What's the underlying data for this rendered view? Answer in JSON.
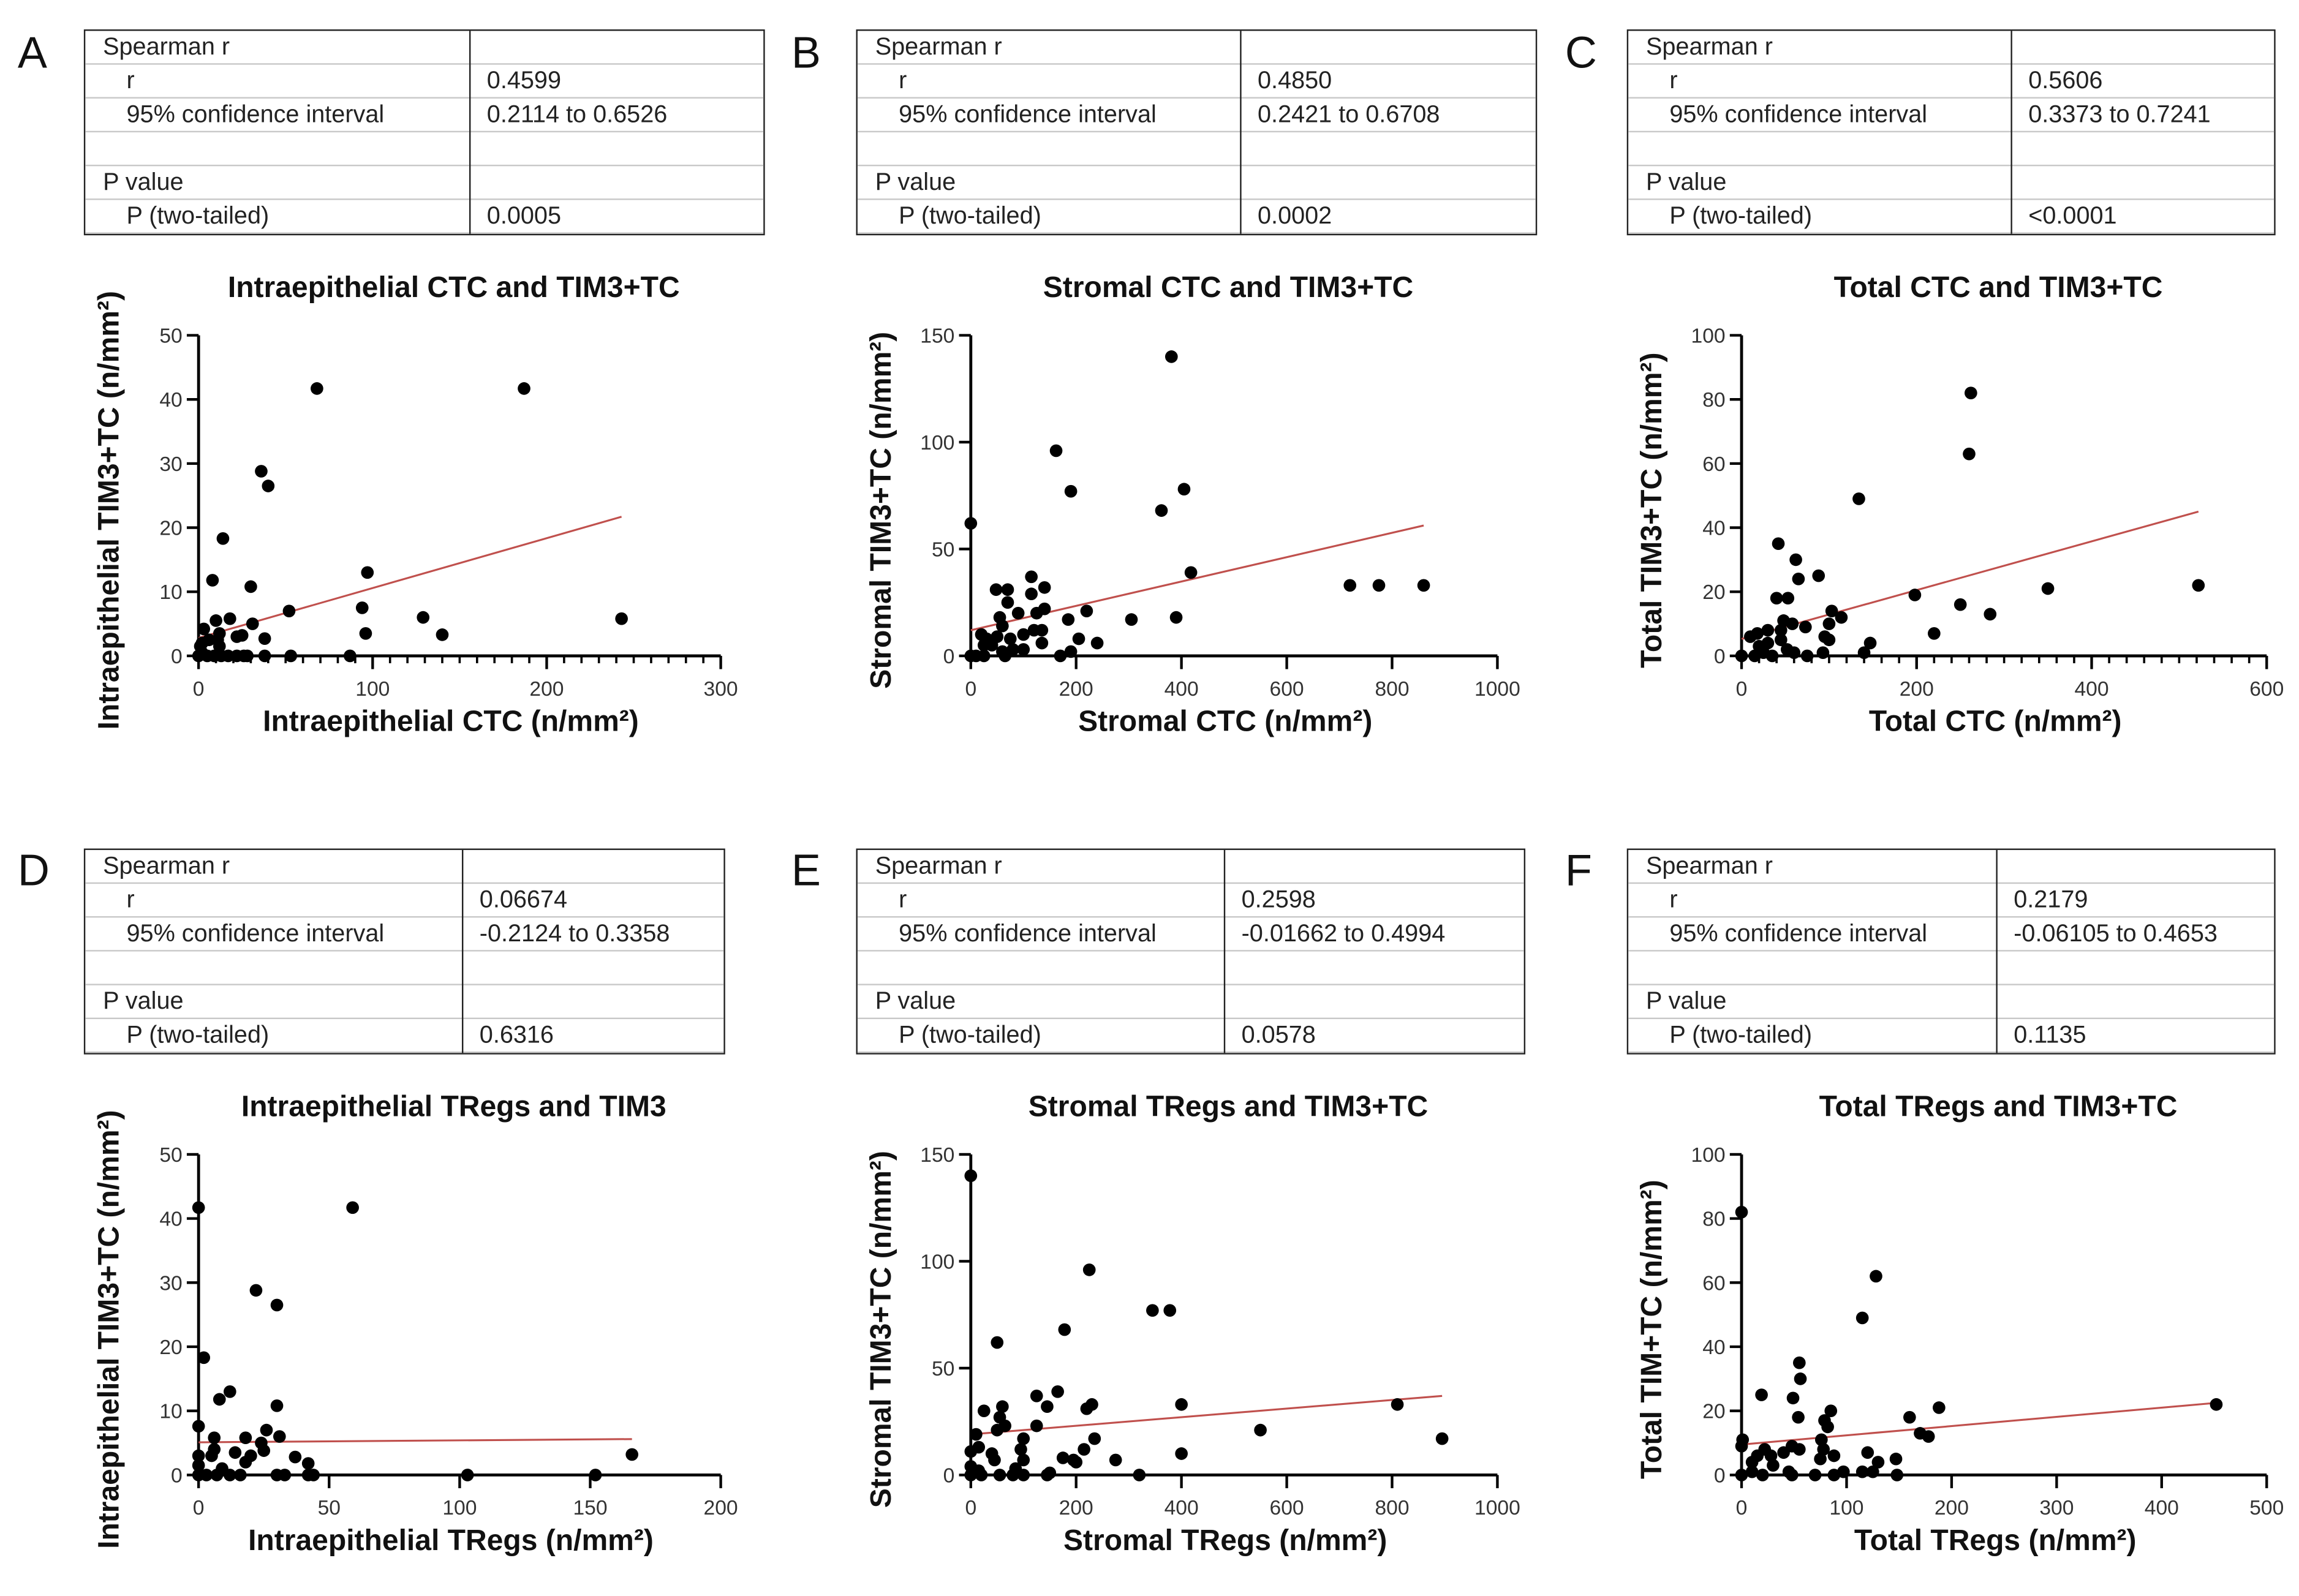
{
  "colors": {
    "points": "#000000",
    "axes": "#000000",
    "regression_line": "#c0504d",
    "table_border": "#222222",
    "table_rule": "#c8c8c8"
  },
  "panels": [
    {
      "letter": "A",
      "table": {
        "header": "Spearman r",
        "r_label": "r",
        "r_value": "0.4599",
        "ci_label": "95% confidence interval",
        "ci_value": "0.2114 to 0.6526",
        "p_header": "P value",
        "p_label": "P (two-tailed)",
        "p_value": "0.0005"
      }
    },
    {
      "letter": "B",
      "table": {
        "header": "Spearman r",
        "r_label": "r",
        "r_value": "0.4850",
        "ci_label": "95% confidence interval",
        "ci_value": "0.2421 to 0.6708",
        "p_header": "P value",
        "p_label": "P (two-tailed)",
        "p_value": "0.0002"
      }
    },
    {
      "letter": "C",
      "table": {
        "header": "Spearman r",
        "r_label": "r",
        "r_value": "0.5606",
        "ci_label": "95% confidence interval",
        "ci_value": "0.3373 to 0.7241",
        "p_header": "P value",
        "p_label": "P (two-tailed)",
        "p_value": "<0.0001"
      }
    },
    {
      "letter": "D",
      "table": {
        "header": "Spearman r",
        "r_label": "r",
        "r_value": "0.06674",
        "ci_label": "95% confidence interval",
        "ci_value": "-0.2124 to 0.3358",
        "p_header": "P value",
        "p_label": "P (two-tailed)",
        "p_value": "0.6316"
      }
    },
    {
      "letter": "E",
      "table": {
        "header": "Spearman r",
        "r_label": "r",
        "r_value": "0.2598",
        "ci_label": "95% confidence interval",
        "ci_value": "-0.01662 to 0.4994",
        "p_header": "P value",
        "p_label": "P (two-tailed)",
        "p_value": "0.0578"
      }
    },
    {
      "letter": "F",
      "table": {
        "header": "Spearman r",
        "r_label": "r",
        "r_value": "0.2179",
        "ci_label": "95% confidence interval",
        "ci_value": "-0.06105 to 0.4653",
        "p_header": "P value",
        "p_label": "P (two-tailed)",
        "p_value": "0.1135"
      }
    }
  ],
  "chart_data": [
    {
      "type": "scatter",
      "title": "Intraepithelial CTC and TIM3+TC",
      "xlabel": "Intraepithelial CTC (n/mm²)",
      "ylabel": "Intraepithelial TIM3+TC (n/mm²)",
      "xlim": [
        0,
        300
      ],
      "ylim": [
        0,
        50
      ],
      "xticks": [
        0,
        100,
        200,
        300
      ],
      "yticks": [
        0,
        10,
        20,
        30,
        40,
        50
      ],
      "x_minor_step": 10,
      "grid": false,
      "regression": [
        [
          0,
          2.8
        ],
        [
          243,
          21.7
        ]
      ],
      "points": [
        [
          68,
          41.7
        ],
        [
          187,
          41.7
        ],
        [
          36,
          28.8
        ],
        [
          40,
          26.5
        ],
        [
          14,
          18.3
        ],
        [
          8,
          11.8
        ],
        [
          30,
          10.8
        ],
        [
          97,
          13
        ],
        [
          52,
          7
        ],
        [
          94,
          7.5
        ],
        [
          129,
          6
        ],
        [
          243,
          5.8
        ],
        [
          140,
          3.3
        ],
        [
          96,
          3.5
        ],
        [
          38,
          2.7
        ],
        [
          31,
          5
        ],
        [
          18,
          5.8
        ],
        [
          10,
          5.5
        ],
        [
          25,
          3.2
        ],
        [
          22,
          3
        ],
        [
          12,
          3.5
        ],
        [
          3,
          4.2
        ],
        [
          1,
          1.5
        ],
        [
          2,
          0.5
        ],
        [
          0,
          0
        ],
        [
          5,
          0
        ],
        [
          9,
          0
        ],
        [
          12,
          1.5
        ],
        [
          13,
          0
        ],
        [
          17,
          0
        ],
        [
          22,
          0
        ],
        [
          26,
          0
        ],
        [
          28,
          0
        ],
        [
          38,
          0
        ],
        [
          53,
          0
        ],
        [
          87,
          0
        ],
        [
          6,
          2.5
        ],
        [
          11,
          2.5
        ],
        [
          2,
          2
        ]
      ]
    },
    {
      "type": "scatter",
      "title": "Stromal CTC and TIM3+TC",
      "xlabel": "Stromal CTC (n/mm²)",
      "ylabel": "Stromal TIM3+TC (n/mm²)",
      "xlim": [
        0,
        1000
      ],
      "ylim": [
        0,
        150
      ],
      "xticks": [
        0,
        200,
        400,
        600,
        800,
        1000
      ],
      "yticks": [
        0,
        50,
        100,
        150
      ],
      "x_minor_step": null,
      "grid": false,
      "regression": [
        [
          0,
          12
        ],
        [
          860,
          61
        ]
      ],
      "points": [
        [
          381,
          140
        ],
        [
          162,
          96
        ],
        [
          190,
          77
        ],
        [
          405,
          78
        ],
        [
          362,
          68
        ],
        [
          0,
          62
        ],
        [
          418,
          39
        ],
        [
          720,
          33
        ],
        [
          775,
          33
        ],
        [
          860,
          33
        ],
        [
          115,
          37
        ],
        [
          48,
          31
        ],
        [
          70,
          31
        ],
        [
          115,
          29
        ],
        [
          140,
          32
        ],
        [
          70,
          25
        ],
        [
          140,
          22
        ],
        [
          125,
          20
        ],
        [
          90,
          20
        ],
        [
          220,
          21
        ],
        [
          185,
          17
        ],
        [
          305,
          17
        ],
        [
          390,
          18
        ],
        [
          55,
          18
        ],
        [
          60,
          14
        ],
        [
          120,
          12
        ],
        [
          135,
          12
        ],
        [
          100,
          10
        ],
        [
          20,
          10
        ],
        [
          30,
          8
        ],
        [
          50,
          9
        ],
        [
          75,
          8
        ],
        [
          205,
          8
        ],
        [
          240,
          6
        ],
        [
          135,
          6
        ],
        [
          25,
          5
        ],
        [
          10,
          0
        ],
        [
          0,
          0
        ],
        [
          25,
          0
        ],
        [
          65,
          0
        ],
        [
          60,
          2
        ],
        [
          100,
          3
        ],
        [
          170,
          0
        ],
        [
          190,
          2
        ],
        [
          80,
          3
        ],
        [
          40,
          5
        ]
      ]
    },
    {
      "type": "scatter",
      "title": "Total CTC and TIM3+TC",
      "xlabel": "Total CTC (n/mm²)",
      "ylabel": "Total TIM3+TC (n/mm²)",
      "xlim": [
        0,
        600
      ],
      "ylim": [
        0,
        100
      ],
      "xticks": [
        0,
        200,
        400,
        600
      ],
      "yticks": [
        0,
        20,
        40,
        60,
        80,
        100
      ],
      "x_minor_step": 20,
      "grid": false,
      "regression": [
        [
          0,
          5.3
        ],
        [
          522,
          45
        ]
      ],
      "points": [
        [
          262,
          82
        ],
        [
          260,
          63
        ],
        [
          134,
          49
        ],
        [
          42,
          35
        ],
        [
          62,
          30
        ],
        [
          88,
          25
        ],
        [
          65,
          24
        ],
        [
          40,
          18
        ],
        [
          53,
          18
        ],
        [
          198,
          19
        ],
        [
          350,
          21
        ],
        [
          522,
          22
        ],
        [
          250,
          16
        ],
        [
          284,
          13
        ],
        [
          103,
          14
        ],
        [
          114,
          12
        ],
        [
          100,
          10
        ],
        [
          48,
          11
        ],
        [
          58,
          10
        ],
        [
          73,
          9
        ],
        [
          30,
          8
        ],
        [
          18,
          7
        ],
        [
          95,
          6
        ],
        [
          100,
          5
        ],
        [
          220,
          7
        ],
        [
          147,
          4
        ],
        [
          140,
          1
        ],
        [
          93,
          1
        ],
        [
          0,
          0
        ],
        [
          15,
          0
        ],
        [
          25,
          1
        ],
        [
          35,
          0
        ],
        [
          45,
          5
        ],
        [
          52,
          2
        ],
        [
          60,
          1
        ],
        [
          75,
          0
        ],
        [
          30,
          4
        ],
        [
          20,
          3
        ],
        [
          10,
          6
        ],
        [
          45,
          8
        ]
      ]
    },
    {
      "type": "scatter",
      "title": "Intraepithelial TRegs and TIM3",
      "xlabel": "Intraepithelial TRegs (n/mm²)",
      "ylabel": "Intraepithelial TIM3+TC (n/mm²)",
      "xlim": [
        0,
        200
      ],
      "ylim": [
        0,
        50
      ],
      "xticks": [
        0,
        50,
        100,
        150,
        200
      ],
      "yticks": [
        0,
        10,
        20,
        30,
        40,
        50
      ],
      "x_minor_step": null,
      "grid": false,
      "regression": [
        [
          0,
          5.1
        ],
        [
          166,
          5.6
        ]
      ],
      "points": [
        [
          0,
          41.7
        ],
        [
          59,
          41.7
        ],
        [
          22,
          28.8
        ],
        [
          30,
          26.5
        ],
        [
          2,
          18.3
        ],
        [
          12,
          13
        ],
        [
          8,
          11.8
        ],
        [
          30,
          10.8
        ],
        [
          0,
          7.6
        ],
        [
          26,
          7
        ],
        [
          18,
          5.8
        ],
        [
          6,
          5.8
        ],
        [
          31,
          6
        ],
        [
          24,
          5
        ],
        [
          6,
          4
        ],
        [
          14,
          3.5
        ],
        [
          25,
          3.8
        ],
        [
          20,
          3
        ],
        [
          37,
          2.8
        ],
        [
          42,
          1.8
        ],
        [
          166,
          3.2
        ],
        [
          5,
          3
        ],
        [
          0,
          3
        ],
        [
          18,
          2
        ],
        [
          0,
          0
        ],
        [
          3,
          0
        ],
        [
          7,
          0
        ],
        [
          9,
          1
        ],
        [
          12,
          0
        ],
        [
          16,
          0
        ],
        [
          30,
          0
        ],
        [
          33,
          0
        ],
        [
          42,
          0
        ],
        [
          44,
          0
        ],
        [
          103,
          0
        ],
        [
          152,
          0
        ],
        [
          0,
          1.5
        ]
      ]
    },
    {
      "type": "scatter",
      "title": "Stromal TRegs and TIM3+TC",
      "xlabel": "Stromal TRegs (n/mm²)",
      "ylabel": "Stromal TIM3+TC (n/mm²)",
      "xlim": [
        0,
        1000
      ],
      "ylim": [
        0,
        150
      ],
      "xticks": [
        0,
        200,
        400,
        600,
        800,
        1000
      ],
      "yticks": [
        0,
        50,
        100,
        150
      ],
      "x_minor_step": null,
      "grid": false,
      "regression": [
        [
          0,
          19
        ],
        [
          895,
          37
        ]
      ],
      "points": [
        [
          0,
          140
        ],
        [
          225,
          96
        ],
        [
          345,
          77
        ],
        [
          378,
          77
        ],
        [
          178,
          68
        ],
        [
          50,
          62
        ],
        [
          165,
          39
        ],
        [
          125,
          37
        ],
        [
          230,
          33
        ],
        [
          220,
          31
        ],
        [
          400,
          33
        ],
        [
          810,
          33
        ],
        [
          145,
          32
        ],
        [
          60,
          32
        ],
        [
          25,
          30
        ],
        [
          55,
          27
        ],
        [
          65,
          23
        ],
        [
          125,
          23
        ],
        [
          550,
          21
        ],
        [
          10,
          19
        ],
        [
          50,
          21
        ],
        [
          235,
          17
        ],
        [
          895,
          17
        ],
        [
          100,
          17
        ],
        [
          15,
          13
        ],
        [
          95,
          12
        ],
        [
          215,
          12
        ],
        [
          0,
          11
        ],
        [
          40,
          10
        ],
        [
          400,
          10
        ],
        [
          45,
          7
        ],
        [
          100,
          7
        ],
        [
          175,
          8
        ],
        [
          195,
          7
        ],
        [
          275,
          7
        ],
        [
          200,
          6
        ],
        [
          0,
          4
        ],
        [
          15,
          2
        ],
        [
          20,
          0
        ],
        [
          55,
          0
        ],
        [
          80,
          0
        ],
        [
          100,
          0
        ],
        [
          145,
          0
        ],
        [
          150,
          1
        ],
        [
          320,
          0
        ],
        [
          85,
          3
        ],
        [
          0,
          0
        ]
      ]
    },
    {
      "type": "scatter",
      "title": "Total TRegs and TIM3+TC",
      "xlabel": "Total TRegs (n/mm²)",
      "ylabel": "Total TIM+TC (n/mm²)",
      "xlim": [
        0,
        500
      ],
      "ylim": [
        0,
        100
      ],
      "xticks": [
        0,
        100,
        200,
        300,
        400,
        500
      ],
      "yticks": [
        0,
        20,
        40,
        60,
        80,
        100
      ],
      "x_minor_step": null,
      "grid": false,
      "regression": [
        [
          0,
          9.5
        ],
        [
          452,
          22.5
        ]
      ],
      "points": [
        [
          0,
          82
        ],
        [
          128,
          62
        ],
        [
          115,
          49
        ],
        [
          55,
          35
        ],
        [
          56,
          30
        ],
        [
          19,
          25
        ],
        [
          49,
          24
        ],
        [
          85,
          20
        ],
        [
          54,
          18
        ],
        [
          79,
          17
        ],
        [
          82,
          15
        ],
        [
          160,
          18
        ],
        [
          188,
          21
        ],
        [
          452,
          22
        ],
        [
          170,
          13
        ],
        [
          178,
          12
        ],
        [
          76,
          11
        ],
        [
          1,
          11
        ],
        [
          0,
          9
        ],
        [
          22,
          8
        ],
        [
          55,
          8
        ],
        [
          78,
          8
        ],
        [
          48,
          9
        ],
        [
          40,
          7
        ],
        [
          28,
          6
        ],
        [
          10,
          4
        ],
        [
          15,
          6
        ],
        [
          75,
          5
        ],
        [
          88,
          6
        ],
        [
          120,
          7
        ],
        [
          130,
          4
        ],
        [
          147,
          5
        ],
        [
          30,
          3
        ],
        [
          0,
          0
        ],
        [
          10,
          1
        ],
        [
          20,
          0
        ],
        [
          45,
          1
        ],
        [
          48,
          0
        ],
        [
          70,
          0
        ],
        [
          88,
          0
        ],
        [
          97,
          1
        ],
        [
          115,
          1
        ],
        [
          125,
          1
        ],
        [
          148,
          0
        ]
      ]
    }
  ]
}
